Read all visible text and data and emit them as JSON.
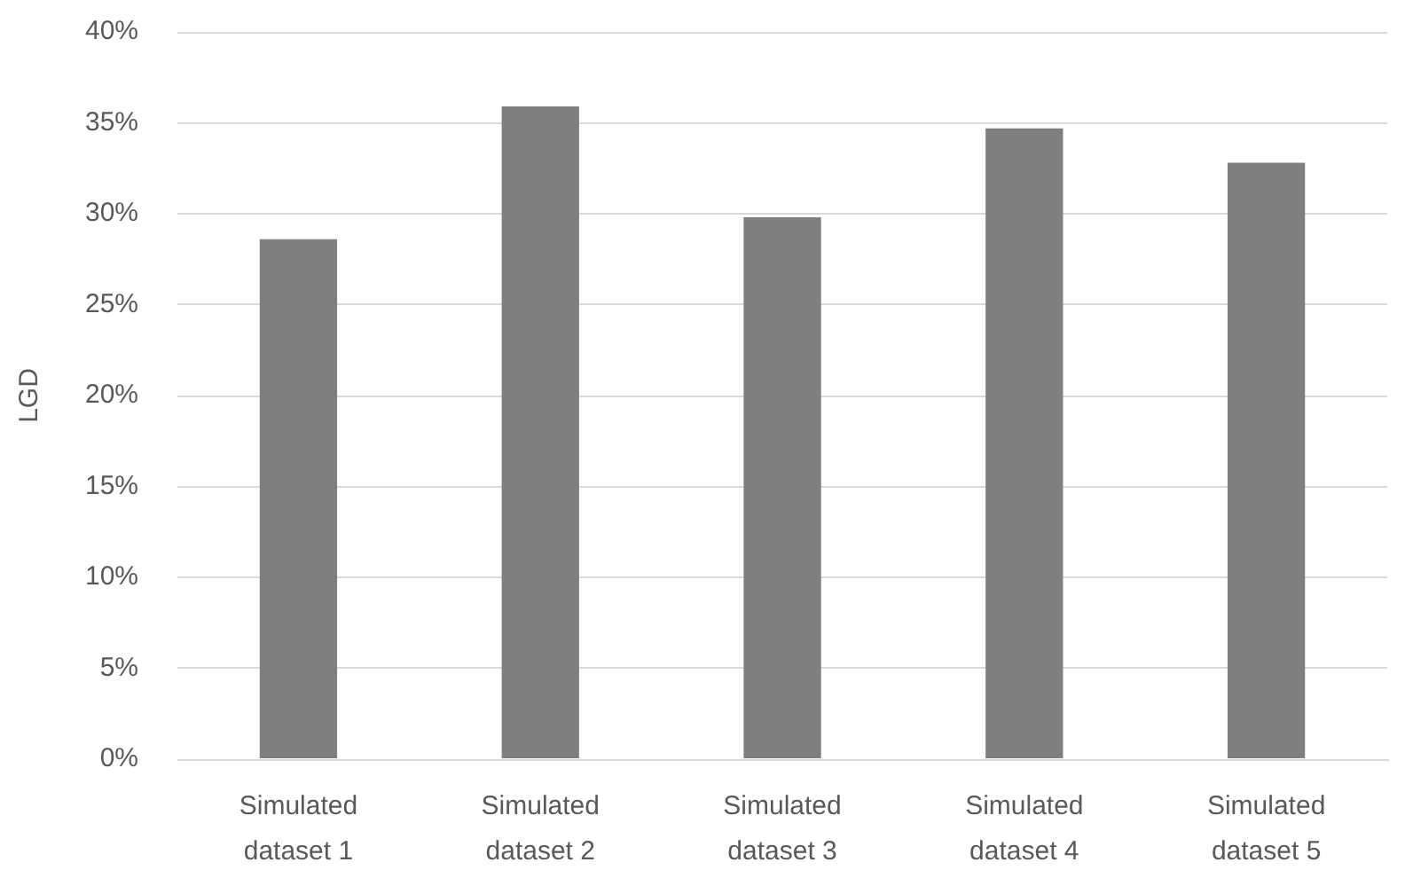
{
  "chart_data": {
    "type": "bar",
    "ylabel": "LGD",
    "categories": [
      "Simulated dataset 1",
      "Simulated dataset 2",
      "Simulated dataset 3",
      "Simulated dataset 4",
      "Simulated dataset 5"
    ],
    "values": [
      28.6,
      35.9,
      29.8,
      34.7,
      32.8
    ],
    "color": "#7f7f7f",
    "ylim": [
      0,
      40
    ],
    "yticks": [
      {
        "value": 0,
        "label": "0%"
      },
      {
        "value": 5,
        "label": "5%"
      },
      {
        "value": 10,
        "label": "10%"
      },
      {
        "value": 15,
        "label": "15%"
      },
      {
        "value": 20,
        "label": "20%"
      },
      {
        "value": 25,
        "label": "25%"
      },
      {
        "value": 30,
        "label": "30%"
      },
      {
        "value": 35,
        "label": "35%"
      },
      {
        "value": 40,
        "label": "40%"
      }
    ],
    "grid": "y"
  }
}
